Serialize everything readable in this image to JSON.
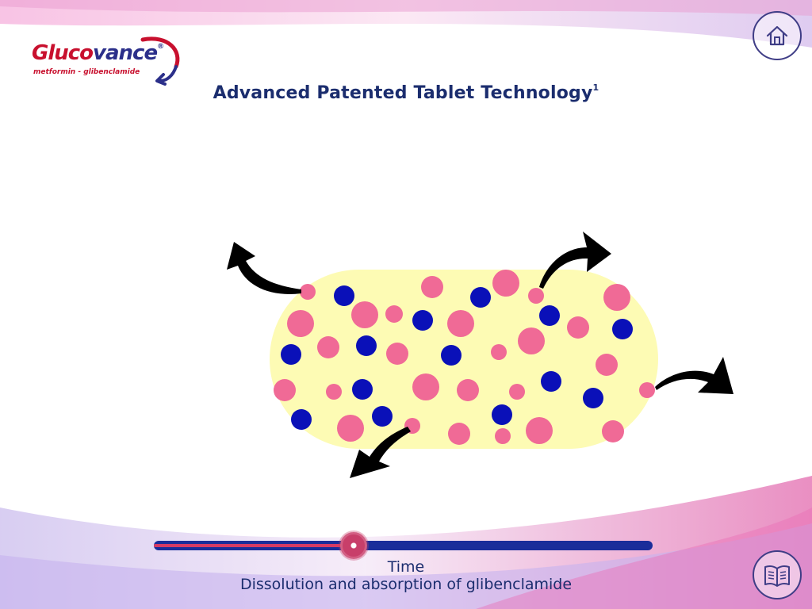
{
  "app": {
    "brand": "Gluco",
    "brand_accent": "vance",
    "brand_mark": "®",
    "brand_subtitle": "metformin - glibenclamide"
  },
  "page": {
    "title": "Advanced Patented Tablet Technology",
    "title_superscript": "1"
  },
  "nav": {
    "home_icon": "home-icon",
    "references_icon": "open-book-icon"
  },
  "slider": {
    "label": "Time",
    "caption": "Dissolution and absorption of glibenclamide",
    "value_fraction": 0.4
  },
  "colors": {
    "brand_red": "#c8102e",
    "navy": "#1b2d6e",
    "tablet_fill": "#fdfbb4",
    "metformin_particle": "#f06a96",
    "glibenclamide_particle": "#0a10b8",
    "slider_track": "#1a2d9a",
    "slider_fill": "#d63a64"
  }
}
